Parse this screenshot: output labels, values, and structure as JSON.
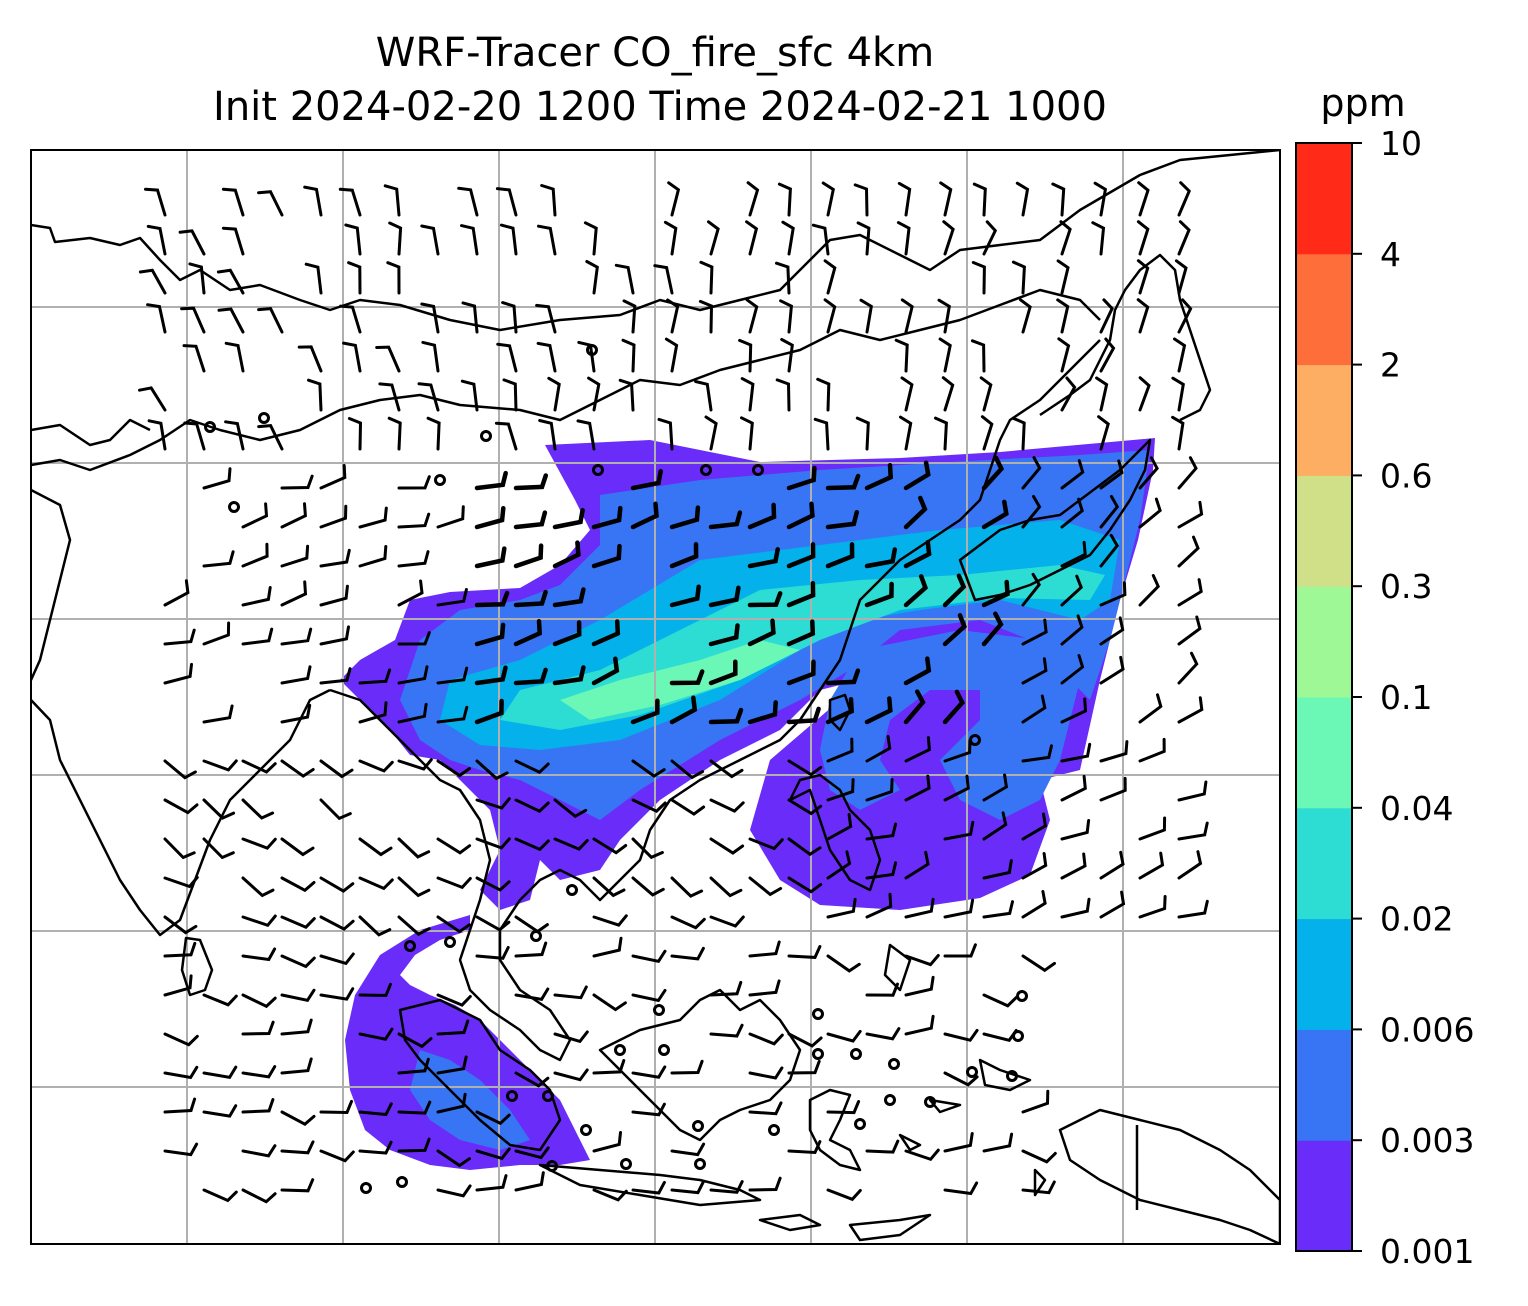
{
  "chart_data": {
    "type": "heatmap",
    "title": "WRF-Tracer CO_fire_sfc 4km",
    "subtitle": "Init 2024-02-20 1200 Time 2024-02-21 1000",
    "colorbar": {
      "label": "ppm",
      "levels": [
        "0.001",
        "0.003",
        "0.006",
        "0.02",
        "0.04",
        "0.1",
        "0.3",
        "0.6",
        "2",
        "4",
        "10"
      ],
      "colors": [
        "#6a2cf8",
        "#3775f4",
        "#04b1ea",
        "#2ddcd2",
        "#6bf7b6",
        "#9ef896",
        "#d0e088",
        "#fdae62",
        "#fd6e3b",
        "#ff2a17"
      ]
    },
    "map": {
      "gridlines": true,
      "gridline_color": "#b0b0b0",
      "coastline_color": "#000000",
      "wind_barbs": true
    }
  }
}
